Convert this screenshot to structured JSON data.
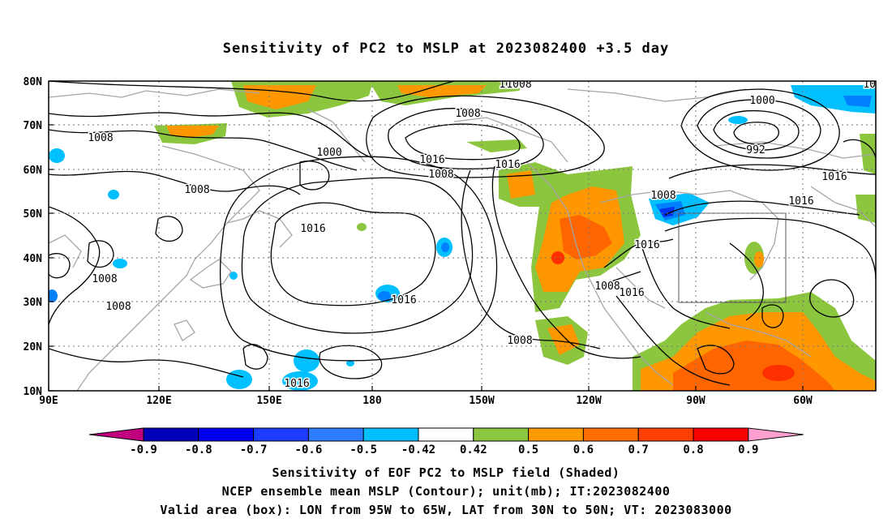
{
  "title": "Sensitivity of PC2 to MSLP at 2023082400 +3.5 day",
  "map": {
    "lat_labels": [
      "80N",
      "70N",
      "60N",
      "50N",
      "40N",
      "30N",
      "20N",
      "10N"
    ],
    "lon_labels": [
      "90E",
      "120E",
      "150E",
      "180",
      "150W",
      "120W",
      "90W",
      "60W"
    ],
    "lon_range": [
      "90E",
      "50W"
    ],
    "lat_range": [
      "10N",
      "80N"
    ],
    "grid": "dotted",
    "contour_labels": [
      "1016",
      "1008",
      "1008",
      "1000",
      "1008",
      "1016",
      "1008",
      "1016",
      "1008",
      "1008",
      "1016",
      "1016",
      "1008",
      "1016",
      "1016",
      "1000",
      "992",
      "1016",
      "1008",
      "1016",
      "1016",
      "1008",
      "1016",
      "1008"
    ],
    "box": {
      "lon_min": "95W",
      "lon_max": "65W",
      "lat_min": "30N",
      "lat_max": "50N"
    },
    "colors": {
      "contour": "#000000",
      "coast": "#a6a6a6",
      "green": "#8cc63e",
      "orange": "#ff9800",
      "dark_orange": "#ff6600",
      "red_orange": "#ff3000",
      "light_blue": "#00c0ff",
      "blue": "#0080ff",
      "dark_blue": "#0033ee"
    }
  },
  "colorbar": {
    "labels": [
      "-0.9",
      "-0.8",
      "-0.7",
      "-0.6",
      "-0.5",
      "-0.42",
      "0.42",
      "0.5",
      "0.6",
      "0.7",
      "0.8",
      "0.9"
    ],
    "colors": [
      "#c0007f",
      "#0000bb",
      "#0000ee",
      "#1c3cff",
      "#2e7cff",
      "#00bfff",
      "#ffffff",
      "#8cc63e",
      "#ff9a00",
      "#ff6e00",
      "#ff3f00",
      "#ff0000",
      "#ffa0d0"
    ]
  },
  "captions": [
    "Sensitivity of EOF PC2 to MSLP field (Shaded)",
    "NCEP ensemble mean MSLP (Contour); unit(mb); IT:2023082400",
    "Valid area (box): LON from 95W to 65W, LAT from 30N to 50N; VT: 2023083000"
  ]
}
